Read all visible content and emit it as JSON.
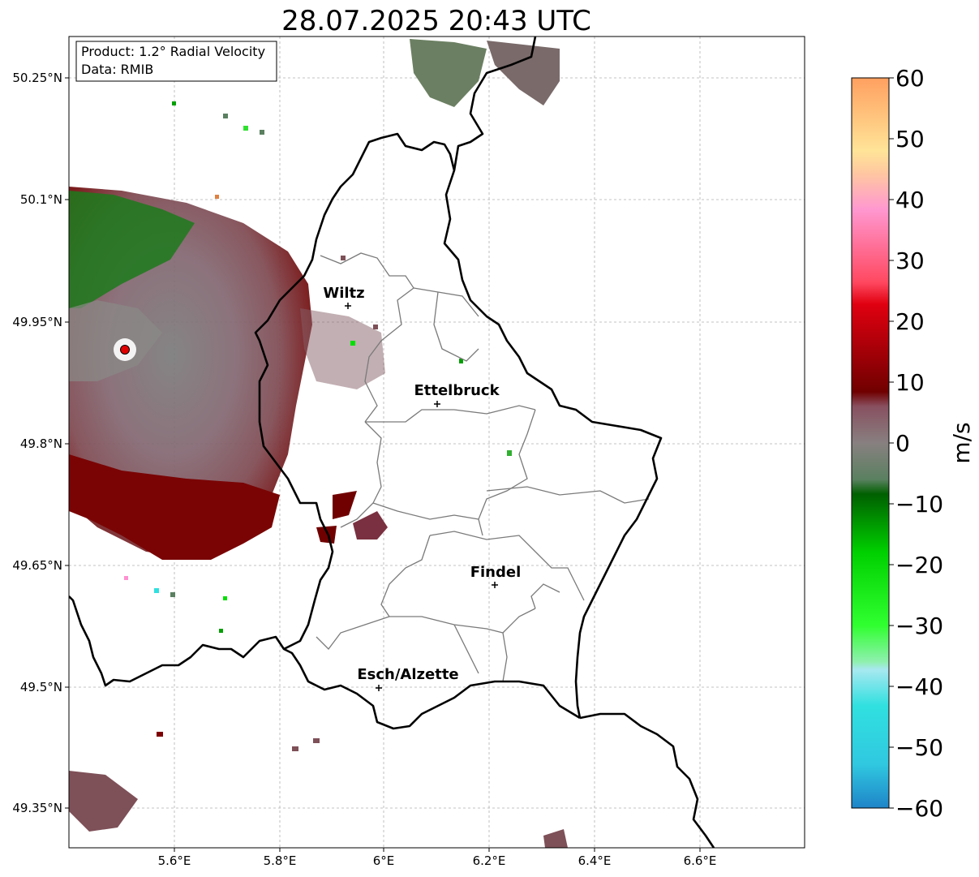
{
  "title": "28.07.2025 20:43 UTC",
  "info_box": {
    "product": "Product: 1.2° Radial Velocity",
    "data": "Data: RMIB"
  },
  "x_ticks": [
    "5.6°E",
    "5.8°E",
    "6°E",
    "6.2°E",
    "6.4°E",
    "6.6°E"
  ],
  "y_ticks": [
    "50.25°N",
    "50.1°N",
    "49.95°N",
    "49.8°N",
    "49.65°N",
    "49.5°N",
    "49.35°N"
  ],
  "cities": [
    {
      "name": "Wiltz"
    },
    {
      "name": "Ettelbruck"
    },
    {
      "name": "Findel"
    },
    {
      "name": "Esch/Alzette"
    }
  ],
  "colorbar": {
    "label": "m/s",
    "min": -60,
    "max": 60,
    "ticks": [
      "60",
      "50",
      "40",
      "30",
      "20",
      "10",
      "0",
      "−10",
      "−20",
      "−30",
      "−40",
      "−50",
      "−60"
    ],
    "bands": [
      {
        "from": 46,
        "to": 60,
        "color": "#ffb070"
      },
      {
        "from": 42,
        "to": 46,
        "color": "#ffe0a0"
      },
      {
        "from": 36,
        "to": 42,
        "color": "#ffa0c8"
      },
      {
        "from": 28,
        "to": 36,
        "color": "#ff6070"
      },
      {
        "from": 18,
        "to": 28,
        "color": "#e00010"
      },
      {
        "from": 8,
        "to": 18,
        "color": "#8a0000"
      },
      {
        "from": 2,
        "to": 8,
        "color": "#885060"
      },
      {
        "from": -2,
        "to": 2,
        "color": "#888080"
      },
      {
        "from": -6,
        "to": -2,
        "color": "#5a8060"
      },
      {
        "from": -18,
        "to": -6,
        "color": "#008000"
      },
      {
        "from": -30,
        "to": -18,
        "color": "#00e000"
      },
      {
        "from": -36,
        "to": -30,
        "color": "#80f0a0"
      },
      {
        "from": -46,
        "to": -36,
        "color": "#a0e8f0"
      },
      {
        "from": -56,
        "to": -46,
        "color": "#30e0e0"
      },
      {
        "from": -60,
        "to": -56,
        "color": "#2080c0"
      }
    ]
  }
}
